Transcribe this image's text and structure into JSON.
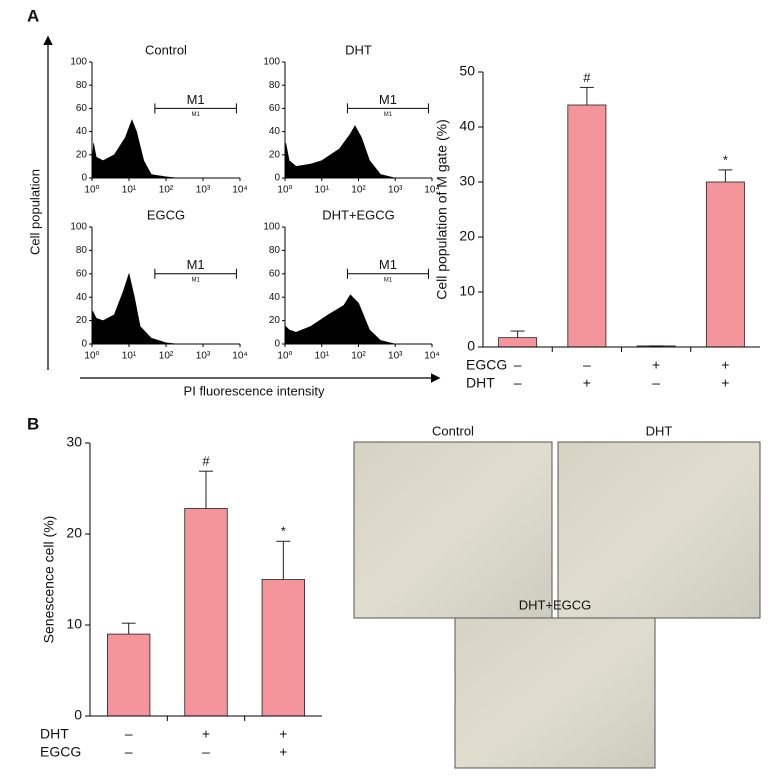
{
  "panel_labels": [
    "A",
    "B"
  ],
  "flow_axes": {
    "y_label": "Cell population",
    "x_label": "PI fluorescence intensity"
  },
  "images": [
    {
      "label": "Control"
    },
    {
      "label": "DHT"
    },
    {
      "label": "DHT+EGCG"
    }
  ],
  "chart_data": [
    {
      "type": "area",
      "title": "Control",
      "color": "#000000",
      "xscale": "log",
      "x": [
        1,
        1.1,
        1.3,
        2,
        4,
        8,
        12,
        16,
        25,
        40,
        100,
        200
      ],
      "values": [
        10,
        30,
        18,
        15,
        20,
        35,
        50,
        40,
        15,
        3,
        1,
        0
      ],
      "xlim": [
        1,
        10000
      ],
      "xticks": [
        {
          "value": 1,
          "label": "10⁰"
        },
        {
          "value": 10,
          "label": "10¹"
        },
        {
          "value": 100,
          "label": "10²"
        },
        {
          "value": 1000,
          "label": "10³"
        },
        {
          "value": 10000,
          "label": "10⁴"
        }
      ],
      "ylim": [
        0,
        100
      ],
      "yticks": [
        0,
        20,
        40,
        60,
        80,
        100
      ],
      "gate": {
        "range": [
          50,
          8000
        ],
        "level": 60,
        "label": "M1",
        "sublabel": "M1"
      }
    },
    {
      "type": "area",
      "title": "DHT",
      "color": "#000000",
      "xscale": "log",
      "x": [
        1,
        1.05,
        1.3,
        2,
        5,
        10,
        30,
        60,
        80,
        120,
        200,
        400,
        1000
      ],
      "values": [
        12,
        30,
        15,
        10,
        12,
        15,
        25,
        38,
        45,
        35,
        15,
        3,
        0
      ],
      "xlim": [
        1,
        10000
      ],
      "xticks": [
        {
          "value": 1,
          "label": "10⁰"
        },
        {
          "value": 10,
          "label": "10¹"
        },
        {
          "value": 100,
          "label": "10²"
        },
        {
          "value": 1000,
          "label": "10³"
        },
        {
          "value": 10000,
          "label": "10⁴"
        }
      ],
      "ylim": [
        0,
        100
      ],
      "yticks": [
        0,
        20,
        40,
        60,
        80,
        100
      ],
      "gate": {
        "range": [
          50,
          8000
        ],
        "level": 60,
        "label": "M1",
        "sublabel": "M1"
      }
    },
    {
      "type": "area",
      "title": "EGCG",
      "color": "#000000",
      "xscale": "log",
      "x": [
        1,
        1.05,
        1.3,
        2,
        4,
        7,
        10,
        14,
        20,
        40,
        100,
        200
      ],
      "values": [
        12,
        28,
        22,
        20,
        25,
        45,
        60,
        40,
        15,
        5,
        1,
        0
      ],
      "xlim": [
        1,
        10000
      ],
      "xticks": [
        {
          "value": 1,
          "label": "10⁰"
        },
        {
          "value": 10,
          "label": "10¹"
        },
        {
          "value": 100,
          "label": "10²"
        },
        {
          "value": 1000,
          "label": "10³"
        },
        {
          "value": 10000,
          "label": "10⁴"
        }
      ],
      "ylim": [
        0,
        100
      ],
      "yticks": [
        0,
        20,
        40,
        60,
        80,
        100
      ],
      "gate": {
        "range": [
          50,
          8000
        ],
        "level": 60,
        "label": "M1",
        "sublabel": "M1"
      }
    },
    {
      "type": "area",
      "title": "DHT+EGCG",
      "color": "#000000",
      "xscale": "log",
      "x": [
        1,
        1.05,
        1.3,
        2,
        5,
        15,
        40,
        60,
        100,
        200,
        400,
        1000
      ],
      "values": [
        8,
        15,
        12,
        10,
        15,
        25,
        33,
        42,
        35,
        12,
        3,
        0
      ],
      "xlim": [
        1,
        10000
      ],
      "xticks": [
        {
          "value": 1,
          "label": "10⁰"
        },
        {
          "value": 10,
          "label": "10¹"
        },
        {
          "value": 100,
          "label": "10²"
        },
        {
          "value": 1000,
          "label": "10³"
        },
        {
          "value": 10000,
          "label": "10⁴"
        }
      ],
      "ylim": [
        0,
        100
      ],
      "yticks": [
        0,
        20,
        40,
        60,
        80,
        100
      ],
      "gate": {
        "range": [
          50,
          8000
        ],
        "level": 60,
        "label": "M1",
        "sublabel": "M1"
      }
    },
    {
      "type": "bar",
      "y_label": "Cell population of M gate (%)",
      "color": "#f4959c",
      "values": [
        1.7,
        44,
        0.2,
        30
      ],
      "errors": [
        1.2,
        3.2,
        0,
        2.2
      ],
      "annotations": [
        {
          "index": 1,
          "text": "#"
        },
        {
          "index": 3,
          "text": "*"
        }
      ],
      "conditions": [
        {
          "name": "EGCG",
          "labels": [
            "–",
            "–",
            "+",
            "+"
          ]
        },
        {
          "name": "DHT",
          "labels": [
            "–",
            "+",
            "–",
            "+"
          ]
        }
      ],
      "ylim": [
        0,
        50
      ],
      "yticks": [
        0,
        10,
        20,
        30,
        40,
        50
      ]
    },
    {
      "type": "bar",
      "y_label": "Senescence cell (%)",
      "color": "#f4959c",
      "values": [
        9,
        22.8,
        15
      ],
      "errors": [
        1.2,
        4.1,
        4.2
      ],
      "annotations": [
        {
          "index": 1,
          "text": "#"
        },
        {
          "index": 2,
          "text": "*"
        }
      ],
      "conditions": [
        {
          "name": "DHT",
          "labels": [
            "–",
            "+",
            "+"
          ]
        },
        {
          "name": "EGCG",
          "labels": [
            "–",
            "–",
            "+"
          ]
        }
      ],
      "ylim": [
        0,
        30
      ],
      "yticks": [
        0,
        10,
        20,
        30
      ]
    }
  ]
}
